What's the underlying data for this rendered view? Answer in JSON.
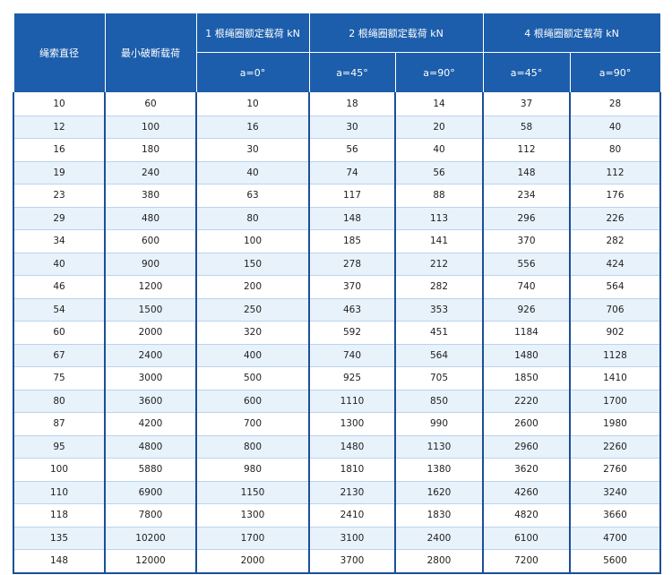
{
  "table": {
    "header": {
      "row1": [
        "绳索直径",
        "最小破断载荷",
        "1 根绳圈额定载荷 kN",
        "2 根绳圈额定载荷 kN",
        "4 根绳圈额定载荷 kN"
      ],
      "row2": [
        "a=0°",
        "a=45°",
        "a=90°",
        "a=45°",
        "a=90°"
      ]
    },
    "rows": [
      [
        10,
        60,
        10,
        18,
        14,
        37,
        28
      ],
      [
        12,
        100,
        16,
        30,
        20,
        58,
        40
      ],
      [
        16,
        180,
        30,
        56,
        40,
        112,
        80
      ],
      [
        19,
        240,
        40,
        74,
        56,
        148,
        112
      ],
      [
        23,
        380,
        63,
        117,
        88,
        234,
        176
      ],
      [
        29,
        480,
        80,
        148,
        113,
        296,
        226
      ],
      [
        34,
        600,
        100,
        185,
        141,
        370,
        282
      ],
      [
        40,
        900,
        150,
        278,
        212,
        556,
        424
      ],
      [
        46,
        1200,
        200,
        370,
        282,
        740,
        564
      ],
      [
        54,
        1500,
        250,
        463,
        353,
        926,
        706
      ],
      [
        60,
        2000,
        320,
        592,
        451,
        1184,
        902
      ],
      [
        67,
        2400,
        400,
        740,
        564,
        1480,
        1128
      ],
      [
        75,
        3000,
        500,
        925,
        705,
        1850,
        1410
      ],
      [
        80,
        3600,
        600,
        1110,
        850,
        2220,
        1700
      ],
      [
        87,
        4200,
        700,
        1300,
        990,
        2600,
        1980
      ],
      [
        95,
        4800,
        800,
        1480,
        1130,
        2960,
        2260
      ],
      [
        100,
        5880,
        980,
        1810,
        1380,
        3620,
        2760
      ],
      [
        110,
        6900,
        1150,
        2130,
        1620,
        4260,
        3240
      ],
      [
        118,
        7800,
        1300,
        2410,
        1830,
        4820,
        3660
      ],
      [
        135,
        10200,
        1700,
        3100,
        2400,
        6100,
        4700
      ],
      [
        148,
        12000,
        2000,
        3700,
        2800,
        7200,
        5600
      ]
    ]
  }
}
